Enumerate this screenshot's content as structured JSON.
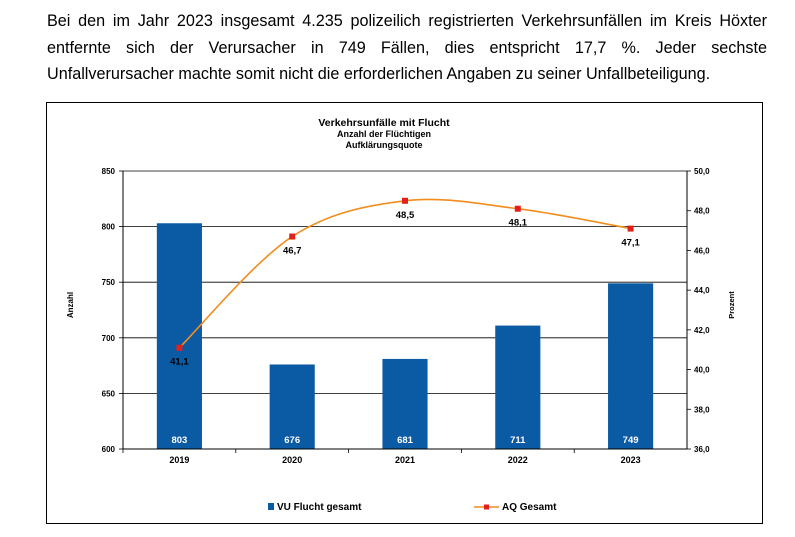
{
  "intro_text": "Bei den im Jahr 2023 insgesamt 4.235 polizeilich registrierten Verkehrsunfällen im Kreis Höxter entfernte sich der Verursacher in 749 Fällen, dies entspricht 17,7 %. Jeder sechste Unfallverursacher machte somit nicht die erforderlichen Angaben zu seiner Unfallbeteiligung.",
  "chart_data": {
    "type": "bar",
    "title": "Verkehrsunfälle  mit Flucht",
    "subtitle_lines": [
      "Anzahl der Flüchtigen",
      "Aufklärungsquote"
    ],
    "categories": [
      "2019",
      "2020",
      "2021",
      "2022",
      "2023"
    ],
    "ylabel": "Anzahl",
    "ylim": [
      600,
      850
    ],
    "yticks": [
      "600",
      "650",
      "700",
      "750",
      "800",
      "850"
    ],
    "y2label": "Prozent",
    "y2lim": [
      36.0,
      50.0
    ],
    "y2ticks": [
      "36,0",
      "38,0",
      "40,0",
      "42,0",
      "44,0",
      "46,0",
      "48,0",
      "50,0"
    ],
    "series": [
      {
        "name": "VU Flucht gesamt",
        "kind": "bar",
        "axis": "left",
        "color": "#0a5aa4",
        "values": [
          803,
          676,
          681,
          711,
          749
        ],
        "labels": [
          "803",
          "676",
          "681",
          "711",
          "749"
        ]
      },
      {
        "name": "AQ Gesamt",
        "kind": "line",
        "axis": "right",
        "color": "#f28c1e",
        "marker_color": "#e0201b",
        "values": [
          41.1,
          46.7,
          48.5,
          48.1,
          47.1
        ],
        "labels": [
          "41,1",
          "46,7",
          "48,5",
          "48,1",
          "47,1"
        ]
      }
    ],
    "grid": "horizontal",
    "legend_position": "bottom"
  }
}
